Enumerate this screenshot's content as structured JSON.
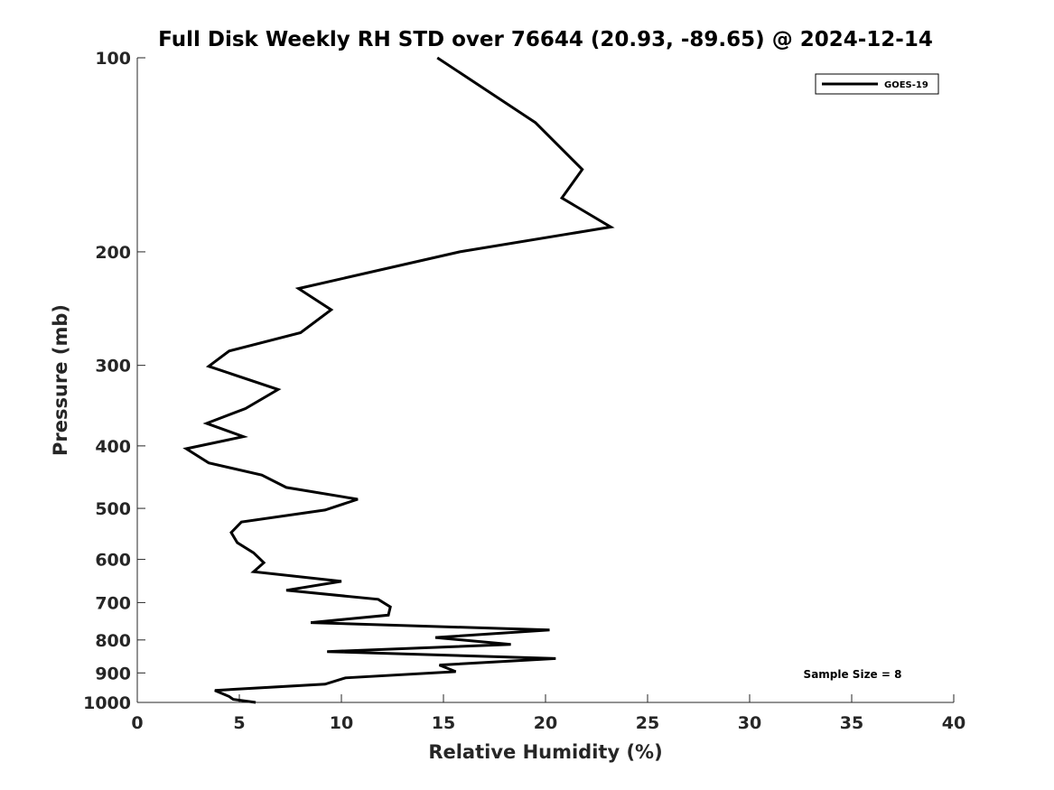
{
  "chart_data": {
    "type": "line",
    "title": "Full Disk Weekly RH STD over 76644 (20.93, -89.65) @ 2024-12-14",
    "xlabel": "Relative Humidity (%)",
    "ylabel": "Pressure (mb)",
    "xlim": [
      0,
      40
    ],
    "ylim": [
      100,
      1000
    ],
    "yscale": "log",
    "yreversed": true,
    "xticks": [
      0,
      5,
      10,
      15,
      20,
      25,
      30,
      35,
      40
    ],
    "xtick_labels": [
      "0",
      "5",
      "10",
      "15",
      "20",
      "25",
      "30",
      "35",
      "40"
    ],
    "yticks": [
      100,
      200,
      300,
      400,
      500,
      600,
      700,
      800,
      900,
      1000
    ],
    "ytick_labels": [
      "100",
      "200",
      "300",
      "400",
      "500",
      "600",
      "700",
      "800",
      "900",
      "1000"
    ],
    "grid": false,
    "legend_position": "top-right",
    "annotation": "Sample Size = 8",
    "series": [
      {
        "name": "GOES-19",
        "color": "#000000",
        "points": [
          [
            14.7,
            100
          ],
          [
            19.5,
            126
          ],
          [
            21.8,
            149
          ],
          [
            20.8,
            165
          ],
          [
            23.2,
            183
          ],
          [
            15.8,
            200
          ],
          [
            7.9,
            228
          ],
          [
            9.5,
            246
          ],
          [
            8.0,
            267
          ],
          [
            4.5,
            285
          ],
          [
            3.5,
            301
          ],
          [
            6.9,
            327
          ],
          [
            5.3,
            350
          ],
          [
            3.4,
            369
          ],
          [
            5.2,
            387
          ],
          [
            2.4,
            404
          ],
          [
            3.5,
            425
          ],
          [
            6.1,
            444
          ],
          [
            7.3,
            464
          ],
          [
            10.8,
            484
          ],
          [
            9.2,
            503
          ],
          [
            5.1,
            525
          ],
          [
            4.6,
            545
          ],
          [
            4.9,
            565
          ],
          [
            5.7,
            586
          ],
          [
            6.2,
            607
          ],
          [
            5.7,
            627
          ],
          [
            10.0,
            649
          ],
          [
            7.3,
            670
          ],
          [
            11.8,
            692
          ],
          [
            12.4,
            711
          ],
          [
            12.3,
            732
          ],
          [
            8.5,
            752
          ],
          [
            20.2,
            772
          ],
          [
            14.6,
            793
          ],
          [
            18.3,
            813
          ],
          [
            9.3,
            834
          ],
          [
            20.5,
            855
          ],
          [
            14.8,
            875
          ],
          [
            15.6,
            896
          ],
          [
            10.2,
            916
          ],
          [
            9.2,
            937
          ],
          [
            3.8,
            958
          ],
          [
            4.5,
            979
          ],
          [
            4.7,
            989
          ],
          [
            5.8,
            1000
          ]
        ]
      }
    ]
  }
}
